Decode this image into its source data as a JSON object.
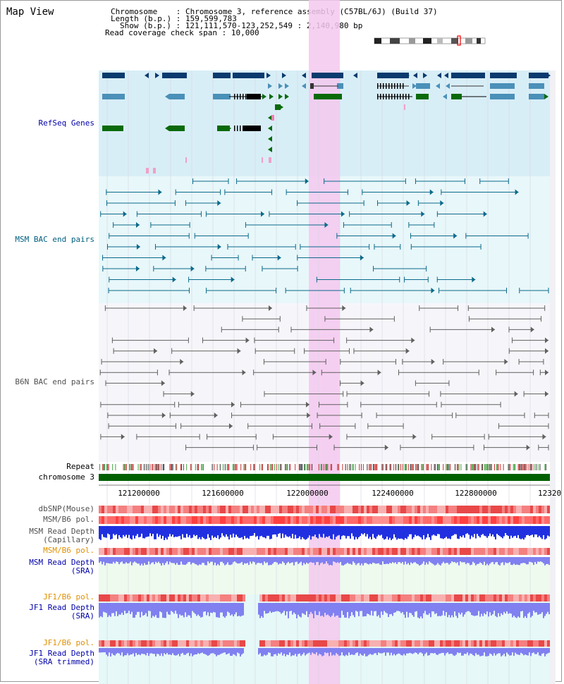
{
  "header": {
    "title": "Map View",
    "chromosome_label": "Chromosome",
    "chromosome_value": "Chromosome 3, reference assembly (C57BL/6J) (Build 37)",
    "length_label": "Length (b.p.)",
    "length_value": "159,599,783",
    "show_label": "Show (b.p.)",
    "show_value": "121,111,570-123,252,549 : 2,140,980 bp",
    "coverage_label": "Read coverage check span",
    "coverage_value": "10,000"
  },
  "tracks": {
    "refseq": "RefSeq Genes",
    "msm_bac": "MSM BAC end pairs",
    "b6n_bac": "B6N BAC end pairs",
    "repeat": "Repeat",
    "chromosome": "chromosome 3",
    "dbsnp": "dbSNP(Mouse)",
    "msm_b6_pol_1": "MSM/B6 pol.",
    "msm_read_depth_cap": "MSM Read Depth\n(Capillary)",
    "msm_b6_pol_2": "MSM/B6 pol.",
    "msm_read_depth_sra": "MSM Read Depth\n(SRA)",
    "jf1_b6_pol_1": "JF1/B6 pol.",
    "jf1_read_depth_sra": "JF1 Read Depth\n(SRA)",
    "jf1_b6_pol_2": "JF1/B6 pol.",
    "jf1_read_depth_trim": "JF1 Read Depth\n(SRA trimmed)"
  },
  "axis": {
    "ticks": [
      "121200000",
      "121600000",
      "122000000",
      "122400000",
      "122800000",
      "12320"
    ]
  },
  "colors": {
    "label_blue": "#0000aa",
    "label_teal": "#006080",
    "label_gray": "#505050",
    "label_orange": "#e09000",
    "highlight": "#f5c8ee"
  }
}
